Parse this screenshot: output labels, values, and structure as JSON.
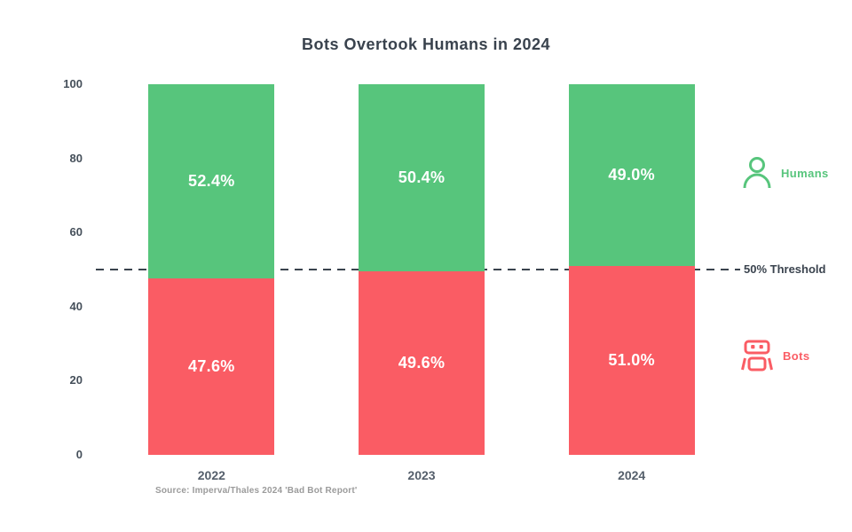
{
  "title": "Bots Overtook Humans in 2024",
  "source": "Source: Imperva/Thales 2024 'Bad Bot Report'",
  "colors": {
    "humans_green": "#57c57c",
    "bots_red": "#fa5c64",
    "title_text": "#39424d",
    "axis_text": "#454f5a",
    "xlabel_text": "#555f6b",
    "threshold_line": "#3a434e",
    "source_text": "#9b9b9b",
    "background": "#ffffff",
    "bar_label_text": "#ffffff"
  },
  "legend": {
    "humans": {
      "label": "Humans",
      "icon": "person-icon",
      "color": "#57c57c"
    },
    "bots": {
      "label": "Bots",
      "icon": "robot-icon",
      "color": "#fa5c64"
    }
  },
  "threshold": {
    "label": "50% Threshold",
    "value": 50
  },
  "chart_data": {
    "type": "bar",
    "stacked": true,
    "title": "Bots Overtook Humans in 2024",
    "categories": [
      "2022",
      "2023",
      "2024"
    ],
    "series": [
      {
        "name": "Bots",
        "values": [
          47.6,
          49.6,
          51.0
        ],
        "color": "#fa5c64",
        "label_format": "percent_1dp"
      },
      {
        "name": "Humans",
        "values": [
          52.4,
          50.4,
          49.0
        ],
        "color": "#57c57c",
        "label_format": "percent_1dp"
      }
    ],
    "bar_labels": {
      "Bots": [
        "47.6%",
        "49.6%",
        "51.0%"
      ],
      "Humans": [
        "52.4%",
        "50.4%",
        "49.0%"
      ]
    },
    "xlabel": "",
    "ylabel": "",
    "ylim": [
      0,
      100
    ],
    "yticks": [
      0,
      20,
      40,
      60,
      80,
      100
    ],
    "grid": false,
    "legend_position": "right",
    "annotations": [
      {
        "type": "hline",
        "y": 50,
        "style": "dashed",
        "label": "50% Threshold"
      }
    ]
  }
}
